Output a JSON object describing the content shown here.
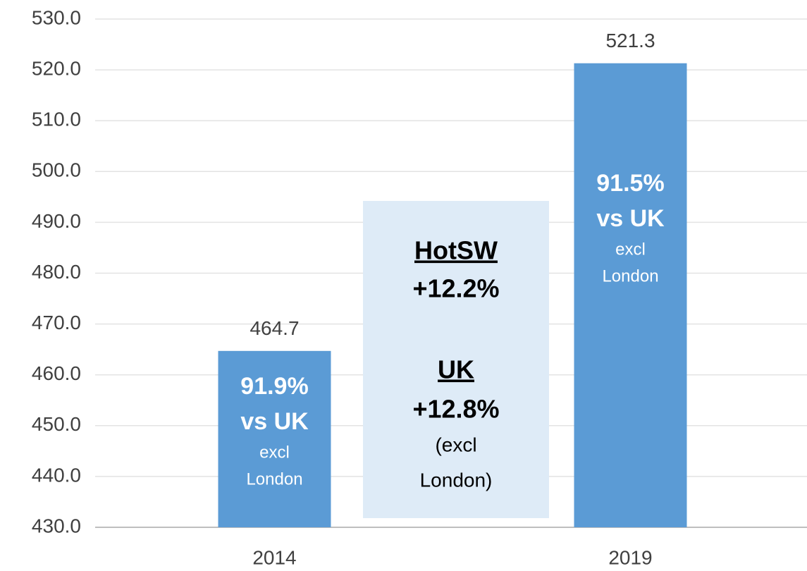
{
  "chart_data": {
    "type": "bar",
    "categories": [
      "2014",
      "2019"
    ],
    "values": [
      464.7,
      521.3
    ],
    "color": "#5b9bd5",
    "ylim": [
      430,
      530
    ],
    "yticks": [
      {
        "value": 430,
        "label": "430.0"
      },
      {
        "value": 440,
        "label": "440.0"
      },
      {
        "value": 450,
        "label": "450.0"
      },
      {
        "value": 460,
        "label": "460.0"
      },
      {
        "value": 470,
        "label": "470.0"
      },
      {
        "value": 480,
        "label": "480.0"
      },
      {
        "value": 490,
        "label": "490.0"
      },
      {
        "value": 500,
        "label": "500.0"
      },
      {
        "value": 510,
        "label": "510.0"
      },
      {
        "value": 520,
        "label": "520.0"
      },
      {
        "value": 530,
        "label": "530.0"
      }
    ],
    "grid": true,
    "bar_annotations": [
      [
        "91.9%",
        "vs UK",
        "excl",
        "London"
      ],
      [
        "91.5%",
        "vs UK",
        "excl",
        "London"
      ]
    ],
    "box_text": [
      "HotSW",
      "+12.2%",
      "UK",
      "+12.8%",
      "(excl",
      "London)"
    ]
  }
}
